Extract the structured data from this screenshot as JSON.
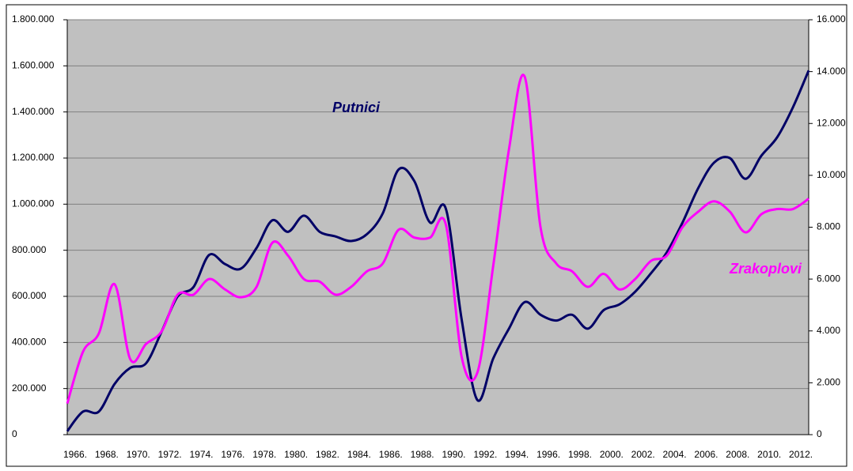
{
  "chart_data": {
    "type": "line",
    "categories": [
      "1966.",
      null,
      "1968.",
      null,
      "1970.",
      null,
      "1972.",
      null,
      "1974.",
      null,
      "1976.",
      null,
      "1978.",
      null,
      "1980.",
      null,
      "1982.",
      null,
      "1984.",
      null,
      "1986.",
      null,
      "1988.",
      null,
      "1990.",
      null,
      "1992.",
      null,
      "1994.",
      null,
      "1996.",
      null,
      "1998.",
      null,
      "2000.",
      null,
      "2002.",
      null,
      "2004.",
      null,
      "2006.",
      null,
      "2008.",
      null,
      "2010.",
      null,
      "2012.",
      null
    ],
    "series": [
      {
        "name": "Putnici",
        "color": "#000066",
        "values": [
          15000,
          100000,
          100000,
          220000,
          290000,
          310000,
          450000,
          600000,
          640000,
          780000,
          740000,
          720000,
          810000,
          930000,
          880000,
          950000,
          880000,
          860000,
          840000,
          870000,
          960000,
          1150000,
          1100000,
          920000,
          980000,
          500000,
          150000,
          330000,
          460000,
          575000,
          520000,
          495000,
          520000,
          460000,
          540000,
          565000,
          620000,
          700000,
          790000,
          920000,
          1070000,
          1180000,
          1200000,
          1110000,
          1210000,
          1290000,
          1420000,
          1580000
        ]
      },
      {
        "name": "Zrakoplovi",
        "color": "#ff00ff",
        "axis": "y2",
        "values": [
          1200,
          3200,
          3900,
          5800,
          2900,
          3500,
          4000,
          5400,
          5400,
          6000,
          5600,
          5300,
          5700,
          7400,
          6900,
          6000,
          5900,
          5400,
          5700,
          6300,
          6600,
          7900,
          7600,
          7600,
          8100,
          3000,
          2400,
          6500,
          11000,
          13800,
          8000,
          6600,
          6300,
          5700,
          6200,
          5600,
          6000,
          6700,
          6900,
          8000,
          8600,
          9000,
          8600,
          7800,
          8500,
          8700,
          8700,
          9100
        ]
      }
    ],
    "ylim": [
      0,
      1800000
    ],
    "yticks": [
      0,
      {
        "value": 200000,
        "label": "200.000"
      },
      {
        "value": 400000,
        "label": "400.000"
      },
      {
        "value": 600000,
        "label": "600.000"
      },
      {
        "value": 800000,
        "label": "800.000"
      },
      {
        "value": 1000000,
        "label": "1.000.000"
      },
      {
        "value": 1200000,
        "label": "1.200.000"
      },
      {
        "value": 1400000,
        "label": "1.400.000"
      },
      {
        "value": 1600000,
        "label": "1.600.000"
      },
      {
        "value": 1800000,
        "label": "1.800.000"
      }
    ],
    "y2lim": [
      0,
      16000
    ],
    "y2ticks": [
      0,
      {
        "value": 2000,
        "label": "2.000"
      },
      {
        "value": 4000,
        "label": "4.000"
      },
      {
        "value": 6000,
        "label": "6.000"
      },
      {
        "value": 8000,
        "label": "8.000"
      },
      {
        "value": 10000,
        "label": "10.000"
      },
      {
        "value": 12000,
        "label": "12.000"
      },
      {
        "value": 14000,
        "label": "14.000"
      },
      {
        "value": 16000,
        "label": "16.000"
      }
    ],
    "grid": true,
    "annotations": [
      "Putnici",
      "Zrakoplovi"
    ]
  }
}
